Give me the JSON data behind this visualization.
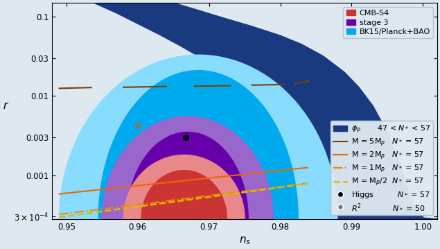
{
  "xlim": [
    0.948,
    1.002
  ],
  "ylim": [
    0.00028,
    0.15
  ],
  "bg_color": "#dde8f0",
  "colors": {
    "cmbs4_1sigma": "#cc3333",
    "cmbs4_2sigma": "#e88888",
    "stage3_1sigma": "#6600aa",
    "stage3_2sigma": "#9966cc",
    "bk15_1sigma": "#00aaee",
    "bk15_2sigma": "#88ddff",
    "phi_p_band": "#1a3a80",
    "M5Mp": "#7B3F00",
    "M2Mp": "#EE6600",
    "M1Mp": "#EE8800",
    "Mhalf": "#DDBB00",
    "higgs_dot": "#000000",
    "R2_dot": "#777777"
  },
  "xticks": [
    0.95,
    0.96,
    0.97,
    0.98,
    0.99,
    1.0
  ],
  "yticks": [
    0.0003,
    0.001,
    0.003,
    0.01,
    0.03,
    0.1
  ]
}
